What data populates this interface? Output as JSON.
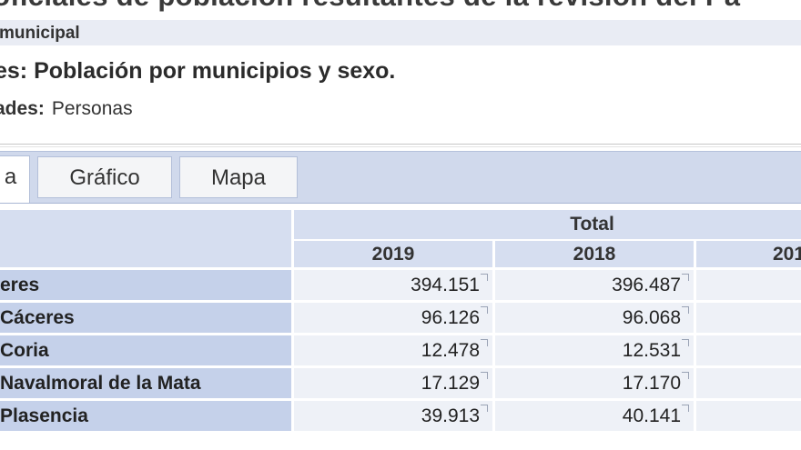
{
  "page": {
    "title": "oficiales de población resultantes de la revisión del Pa",
    "section": "municipal",
    "table_title": "es: Población por municipios y sexo.",
    "units_label": "ades:",
    "units_value": "Personas"
  },
  "tabs": [
    {
      "label": "a"
    },
    {
      "label": "Gráfico"
    },
    {
      "label": "Mapa"
    }
  ],
  "table": {
    "group_header": "Total",
    "years": [
      "2019",
      "2018",
      "201"
    ],
    "rows": [
      {
        "label": "eres",
        "values": [
          "394.151",
          "396.487",
          ""
        ]
      },
      {
        "label": "Cáceres",
        "values": [
          "96.126",
          "96.068",
          ""
        ]
      },
      {
        "label": "Coria",
        "values": [
          "12.478",
          "12.531",
          ""
        ]
      },
      {
        "label": "Navalmoral de la Mata",
        "values": [
          "17.129",
          "17.170",
          ""
        ]
      },
      {
        "label": "Plasencia",
        "values": [
          "39.913",
          "40.141",
          ""
        ]
      }
    ]
  },
  "colors": {
    "tab_bar": "#d0d9ec",
    "row_header": "#c5d1ea",
    "column_header": "#d6def0",
    "value_cell": "#eef1f7"
  }
}
